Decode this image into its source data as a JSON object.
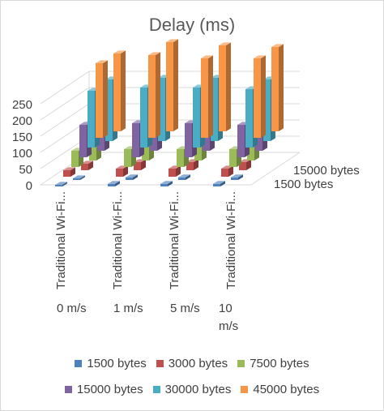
{
  "chart_data": {
    "type": "bar",
    "variant": "3d-column",
    "title": "Delay (ms)",
    "categories": [
      "0 m/s",
      "1 m/s",
      "5 m/s",
      "10 m/s"
    ],
    "inner_labels": [
      "Traditional Wi-Fi...",
      "Traditional Wi-Fi...",
      "Traditional Wi-Fi...",
      "Traditional Wi-Fi..."
    ],
    "depth_labels": [
      "15000 bytes",
      "1500 bytes"
    ],
    "ylim": [
      0,
      250
    ],
    "yticks": [
      0,
      50,
      100,
      150,
      200,
      250
    ],
    "grid": true,
    "legend_position": "bottom",
    "series": [
      {
        "name": "1500 bytes",
        "color": "#4f81bd",
        "values": [
          [
            5,
            5
          ],
          [
            8,
            8
          ],
          [
            8,
            8
          ],
          [
            8,
            8
          ]
        ]
      },
      {
        "name": "3000 bytes",
        "color": "#c0504d",
        "values": [
          [
            20,
            20
          ],
          [
            25,
            25
          ],
          [
            25,
            25
          ],
          [
            25,
            25
          ]
        ]
      },
      {
        "name": "7500 bytes",
        "color": "#9bbb59",
        "values": [
          [
            50,
            50
          ],
          [
            55,
            55
          ],
          [
            55,
            55
          ],
          [
            55,
            55
          ]
        ]
      },
      {
        "name": "15000 bytes",
        "color": "#8064a2",
        "values": [
          [
            100,
            100
          ],
          [
            105,
            105
          ],
          [
            105,
            105
          ],
          [
            100,
            100
          ]
        ]
      },
      {
        "name": "30000 bytes",
        "color": "#4bacc6",
        "values": [
          [
            190,
            175
          ],
          [
            195,
            185
          ],
          [
            195,
            185
          ],
          [
            190,
            180
          ]
        ]
      },
      {
        "name": "45000 bytes",
        "color": "#f79646",
        "values": [
          [
            240,
            230
          ],
          [
            275,
            255
          ],
          [
            265,
            245
          ],
          [
            260,
            245
          ]
        ]
      }
    ]
  }
}
